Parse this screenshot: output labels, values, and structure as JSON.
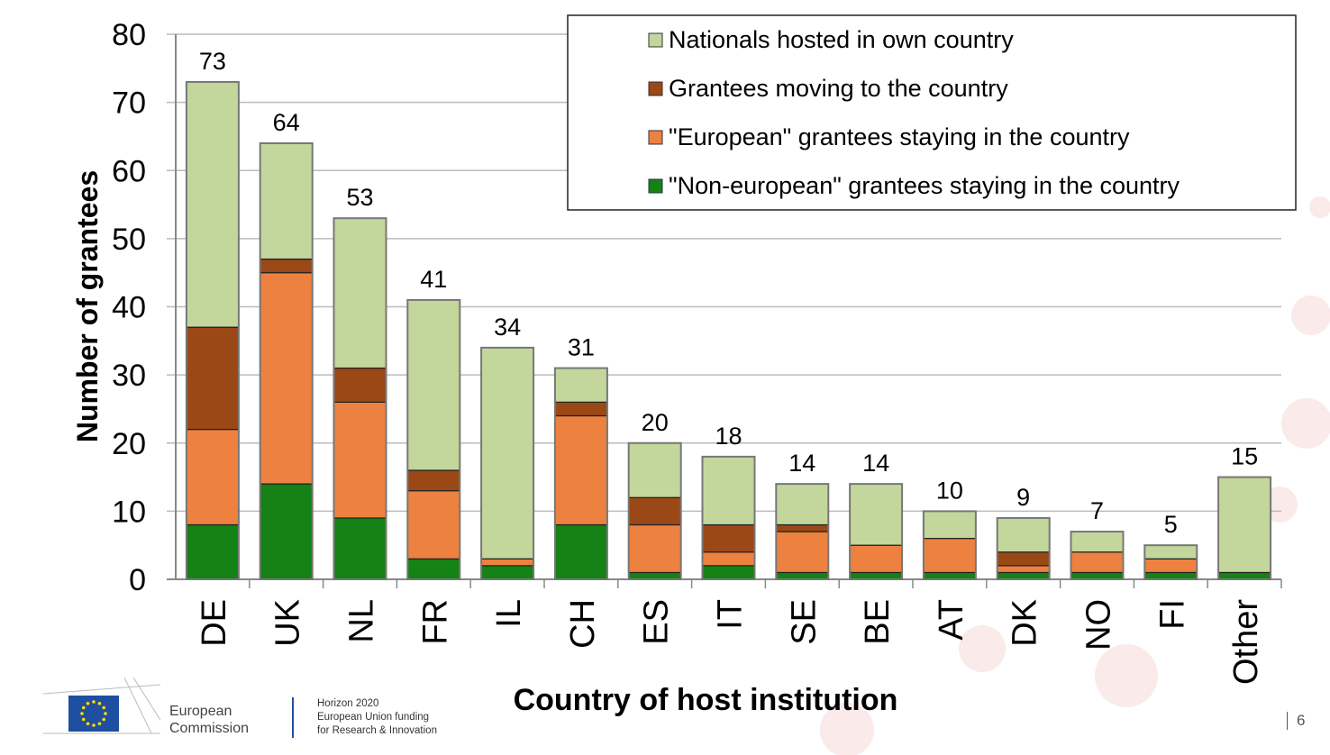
{
  "chart_data": {
    "type": "bar",
    "stacked": true,
    "title": "",
    "xlabel": "Country of host institution",
    "ylabel": "Number of grantees",
    "ylim": [
      0,
      80
    ],
    "yticks": [
      0,
      10,
      20,
      30,
      40,
      50,
      60,
      70,
      80
    ],
    "grid": true,
    "legend_position": "top-right",
    "categories": [
      "DE",
      "UK",
      "NL",
      "FR",
      "IL",
      "CH",
      "ES",
      "IT",
      "SE",
      "BE",
      "AT",
      "DK",
      "NO",
      "FI",
      "Other"
    ],
    "totals": [
      73,
      64,
      53,
      41,
      34,
      31,
      20,
      18,
      14,
      14,
      10,
      9,
      7,
      5,
      15
    ],
    "series": [
      {
        "name": "\"Non-european\" grantees staying in the country",
        "color": "#148214",
        "values": [
          8,
          14,
          9,
          3,
          2,
          8,
          1,
          2,
          1,
          1,
          1,
          1,
          1,
          1,
          1
        ]
      },
      {
        "name": "\"European\" grantees staying in the country",
        "color": "#ed8140",
        "values": [
          14,
          31,
          17,
          10,
          1,
          16,
          7,
          2,
          6,
          4,
          5,
          1,
          3,
          2,
          0
        ]
      },
      {
        "name": "Grantees moving to the country",
        "color": "#9b4817",
        "values": [
          15,
          2,
          5,
          3,
          0,
          2,
          4,
          4,
          1,
          0,
          0,
          2,
          0,
          0,
          0
        ]
      },
      {
        "name": "Nationals hosted in own country",
        "color": "#c3d69b",
        "values": [
          36,
          17,
          22,
          25,
          31,
          5,
          8,
          10,
          6,
          9,
          4,
          5,
          3,
          2,
          14
        ]
      }
    ],
    "legend_order": [
      3,
      2,
      1,
      0
    ]
  },
  "footer": {
    "ec_line1": "European",
    "ec_line2": "Commission",
    "h_line1": "Horizon 2020",
    "h_line2": "European Union funding",
    "h_line3": "for Research & Innovation",
    "page": "6"
  }
}
